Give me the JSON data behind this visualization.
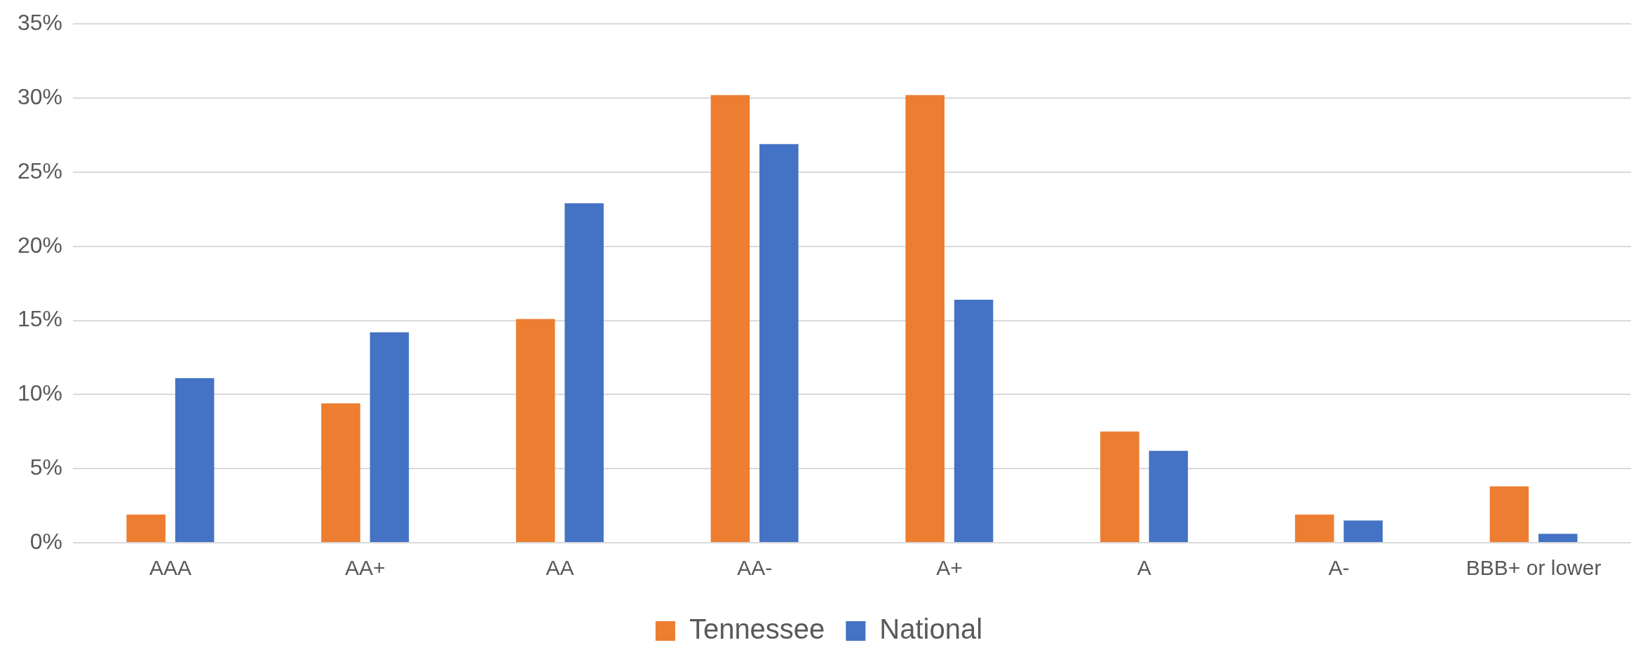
{
  "chart_data": {
    "type": "bar",
    "categories": [
      "AAA",
      "AA+",
      "AA",
      "AA-",
      "A+",
      "A",
      "A-",
      "BBB+ or lower"
    ],
    "series": [
      {
        "name": "Tennessee",
        "color": "#ed7d31",
        "values": [
          1.9,
          9.4,
          15.1,
          30.2,
          30.2,
          7.5,
          1.9,
          3.8
        ]
      },
      {
        "name": "National",
        "color": "#4472c4",
        "values": [
          11.1,
          14.2,
          22.9,
          26.9,
          16.4,
          6.2,
          1.5,
          0.6
        ]
      }
    ],
    "ylim": [
      0,
      35
    ],
    "yticks": [
      {
        "value": 0,
        "label": "0%"
      },
      {
        "value": 5,
        "label": "5%"
      },
      {
        "value": 10,
        "label": "10%"
      },
      {
        "value": 15,
        "label": "15%"
      },
      {
        "value": 20,
        "label": "20%"
      },
      {
        "value": 25,
        "label": "25%"
      },
      {
        "value": 30,
        "label": "30%"
      },
      {
        "value": 35,
        "label": "35%"
      }
    ],
    "grid": "y",
    "legend": "bottom"
  }
}
